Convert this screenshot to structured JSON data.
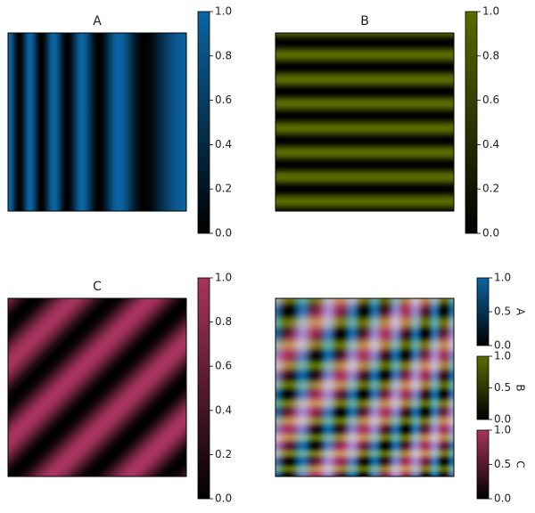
{
  "chart_data": [
    {
      "type": "image",
      "title": "A",
      "colorbars": [
        {
          "color": "#0b65a3",
          "ylim": [
            0,
            1
          ],
          "yticks": [
            {
              "value": 0,
              "label": "0.0"
            },
            {
              "value": 0.2,
              "label": "0.2"
            },
            {
              "value": 0.4,
              "label": "0.4"
            },
            {
              "value": 0.6,
              "label": "0.6"
            },
            {
              "value": 0.8,
              "label": "0.8"
            },
            {
              "value": 1,
              "label": "1.0"
            }
          ]
        }
      ]
    },
    {
      "type": "image",
      "title": "B",
      "colorbars": [
        {
          "color": "#5a6b00",
          "ylim": [
            0,
            1
          ],
          "yticks": [
            {
              "value": 0,
              "label": "0.0"
            },
            {
              "value": 0.2,
              "label": "0.2"
            },
            {
              "value": 0.4,
              "label": "0.4"
            },
            {
              "value": 0.6,
              "label": "0.6"
            },
            {
              "value": 0.8,
              "label": "0.8"
            },
            {
              "value": 1,
              "label": "1.0"
            }
          ]
        }
      ]
    },
    {
      "type": "image",
      "title": "C",
      "colorbars": [
        {
          "color": "#a8345e",
          "ylim": [
            0,
            1
          ],
          "yticks": [
            {
              "value": 0,
              "label": "0.0"
            },
            {
              "value": 0.2,
              "label": "0.2"
            },
            {
              "value": 0.4,
              "label": "0.4"
            },
            {
              "value": 0.6,
              "label": "0.6"
            },
            {
              "value": 0.8,
              "label": "0.8"
            },
            {
              "value": 1,
              "label": "1.0"
            }
          ]
        }
      ]
    },
    {
      "type": "image",
      "colorbars": [
        {
          "label": "A",
          "color": "#0b65a3",
          "ylim": [
            0,
            1
          ],
          "yticks": [
            {
              "value": 0,
              "label": "0.0"
            },
            {
              "value": 0.5,
              "label": "0.5"
            },
            {
              "value": 1,
              "label": "1.0"
            }
          ]
        },
        {
          "label": "B",
          "color": "#5a6b00",
          "ylim": [
            0,
            1
          ],
          "yticks": [
            {
              "value": 0,
              "label": "0.0"
            },
            {
              "value": 0.5,
              "label": "0.5"
            },
            {
              "value": 1,
              "label": "1.0"
            }
          ]
        },
        {
          "label": "C",
          "color": "#a8345e",
          "ylim": [
            0,
            1
          ],
          "yticks": [
            {
              "value": 0,
              "label": "0.0"
            },
            {
              "value": 0.5,
              "label": "0.5"
            },
            {
              "value": 1,
              "label": "1.0"
            }
          ]
        }
      ]
    }
  ]
}
